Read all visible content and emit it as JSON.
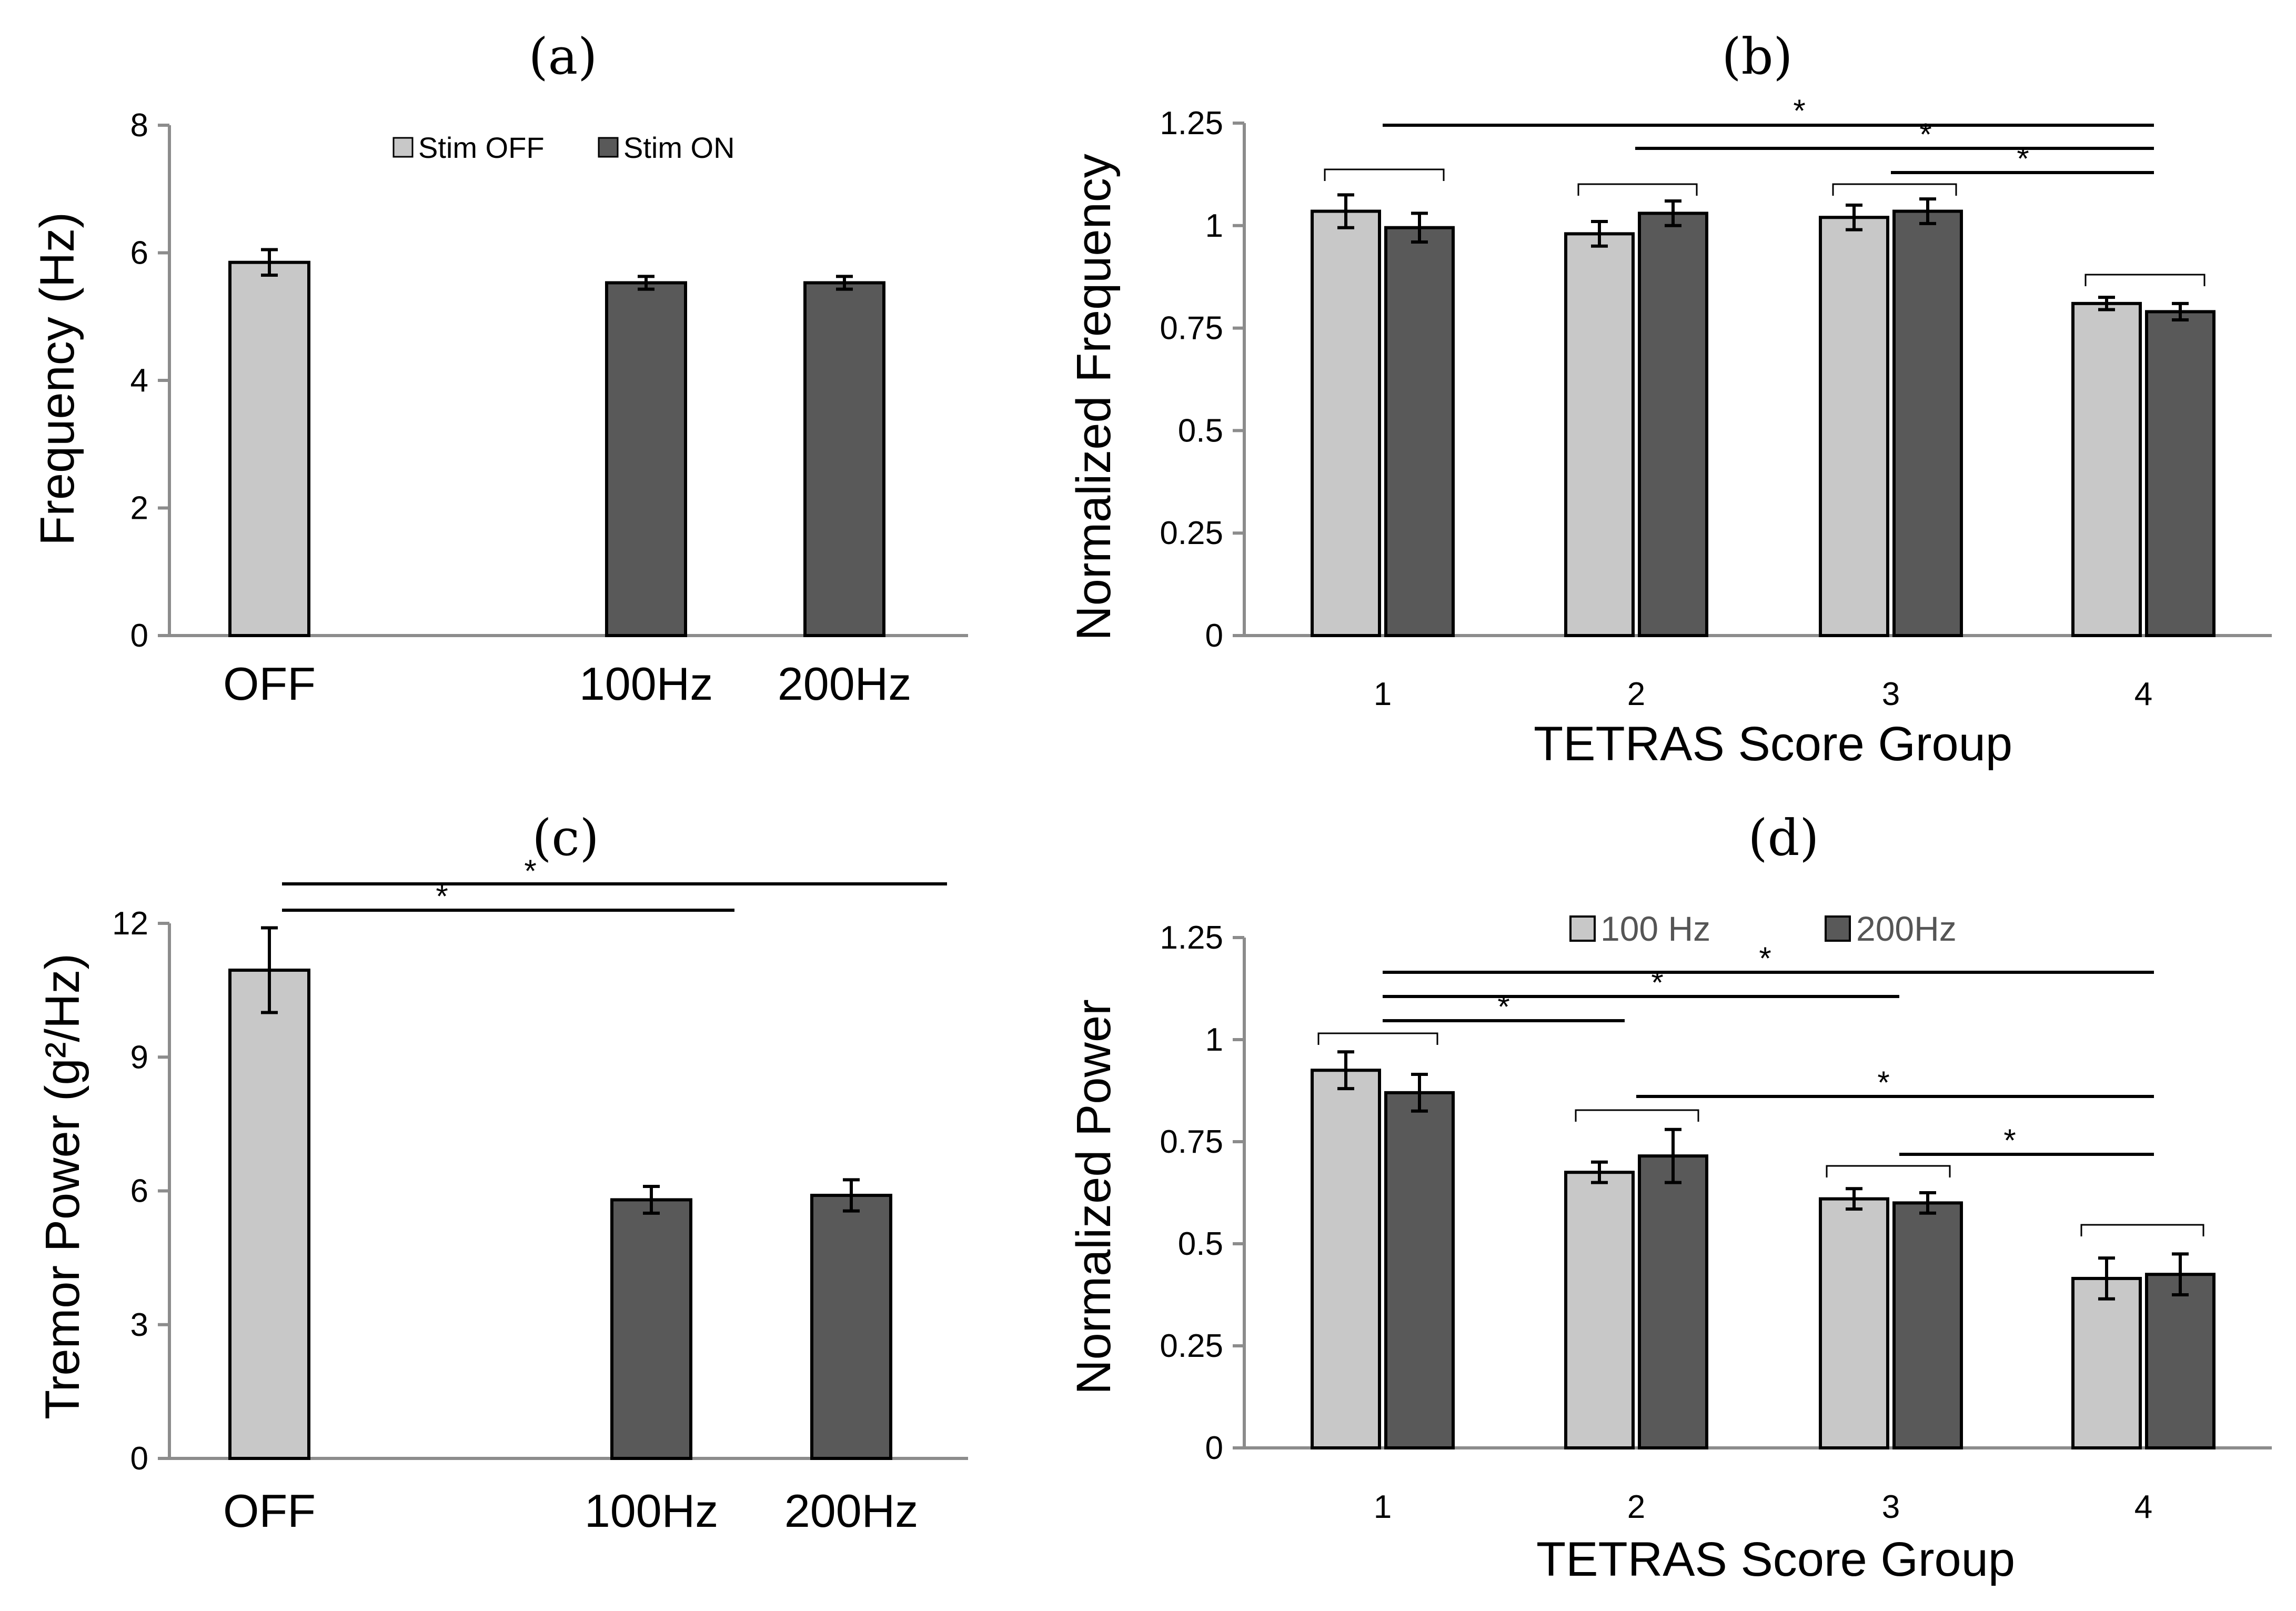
{
  "colors": {
    "stim_off": "#c8c8c8",
    "stim_on": "#595959",
    "axis": "#8c8c8c",
    "edge": "#000000"
  },
  "chart_data": [
    {
      "panel": "(a)",
      "type": "bar",
      "ylabel": "Frequency (Hz)",
      "xlabel": "",
      "ylim": [
        0,
        8
      ],
      "yticks": [
        "0",
        "2",
        "4",
        "6",
        "8"
      ],
      "categories": [
        "OFF",
        "100Hz",
        "200Hz"
      ],
      "legend": [
        "Stim OFF",
        "Stim ON"
      ],
      "legend_position": "top",
      "bars": [
        {
          "category": "OFF",
          "series": "Stim OFF",
          "value": 5.85,
          "error": 0.2
        },
        {
          "category": "100Hz",
          "series": "Stim ON",
          "value": 5.53,
          "error": 0.1
        },
        {
          "category": "200Hz",
          "series": "Stim ON",
          "value": 5.53,
          "error": 0.1
        }
      ],
      "significance": []
    },
    {
      "panel": "(b)",
      "type": "bar",
      "ylabel": "Normalized Frequency",
      "xlabel": "TETRAS Score Group",
      "ylim": [
        0,
        1.25
      ],
      "yticks": [
        "0",
        "0.25",
        "0.5",
        "0.75",
        "1",
        "1.25"
      ],
      "categories": [
        "1",
        "2",
        "3",
        "4"
      ],
      "series": [
        {
          "values": [
            1.035,
            0.98,
            1.02,
            0.81
          ],
          "errors": [
            0.04,
            0.03,
            0.03,
            0.015
          ]
        },
        {
          "values": [
            0.995,
            1.03,
            1.035,
            0.79
          ],
          "errors": [
            0.035,
            0.03,
            0.03,
            0.02
          ]
        }
      ],
      "significance": [
        {
          "from": "1",
          "to": "4",
          "label": "*"
        },
        {
          "from": "2",
          "to": "4",
          "label": "*"
        },
        {
          "from": "3",
          "to": "4",
          "label": "*"
        }
      ]
    },
    {
      "panel": "(c)",
      "type": "bar",
      "ylabel": "Tremor Power (g²/Hz)",
      "xlabel": "",
      "ylim": [
        0,
        12
      ],
      "yticks": [
        "0",
        "3",
        "6",
        "9",
        "12"
      ],
      "categories": [
        "OFF",
        "100Hz",
        "200Hz"
      ],
      "bars": [
        {
          "category": "OFF",
          "series": "Stim OFF",
          "value": 10.95,
          "error": 0.95
        },
        {
          "category": "100Hz",
          "series": "Stim ON",
          "value": 5.8,
          "error": 0.3
        },
        {
          "category": "200Hz",
          "series": "Stim ON",
          "value": 5.9,
          "error": 0.35
        }
      ],
      "significance": [
        {
          "from": "OFF",
          "to": "200Hz",
          "label": "*"
        },
        {
          "from": "OFF",
          "to": "100Hz",
          "label": "*"
        }
      ]
    },
    {
      "panel": "(d)",
      "type": "bar",
      "ylabel": "Normalized Power",
      "xlabel": "TETRAS Score Group",
      "ylim": [
        0,
        1.25
      ],
      "yticks": [
        "0",
        "0.25",
        "0.5",
        "0.75",
        "1",
        "1.25"
      ],
      "categories": [
        "1",
        "2",
        "3",
        "4"
      ],
      "legend_position": "top",
      "series": [
        {
          "name": "100 Hz",
          "values": [
            0.925,
            0.675,
            0.61,
            0.415
          ],
          "errors": [
            0.045,
            0.025,
            0.025,
            0.05
          ]
        },
        {
          "name": "200Hz",
          "values": [
            0.87,
            0.715,
            0.6,
            0.425
          ],
          "errors": [
            0.045,
            0.065,
            0.025,
            0.05
          ]
        }
      ],
      "significance": [
        {
          "from": "1",
          "to": "4",
          "label": "*"
        },
        {
          "from": "1",
          "to": "3",
          "label": "*"
        },
        {
          "from": "1",
          "to": "2",
          "label": "*"
        },
        {
          "from": "2",
          "to": "4",
          "label": "*"
        },
        {
          "from": "3",
          "to": "4",
          "label": "*"
        }
      ]
    }
  ]
}
